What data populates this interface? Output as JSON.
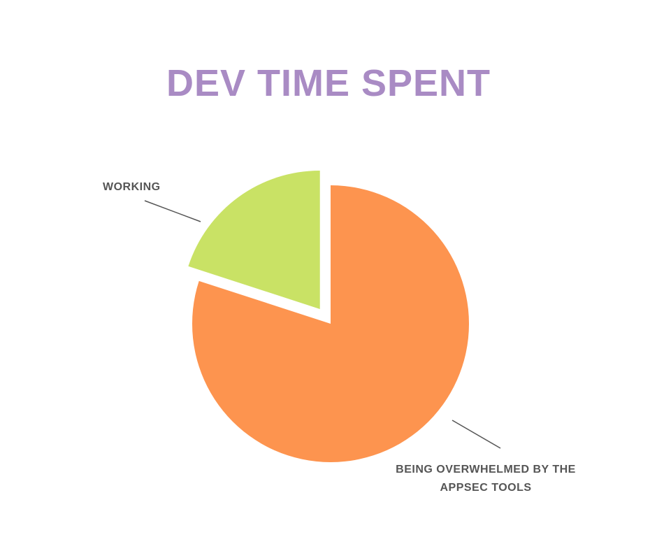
{
  "chart_data": {
    "type": "pie",
    "title": "DEV TIME SPENT",
    "categories": [
      "WORKING",
      "BEING OVERWHELMED BY THE APPSEC TOOLS"
    ],
    "values": [
      20,
      80
    ],
    "colors": [
      "#c9e265",
      "#fd944f"
    ]
  }
}
